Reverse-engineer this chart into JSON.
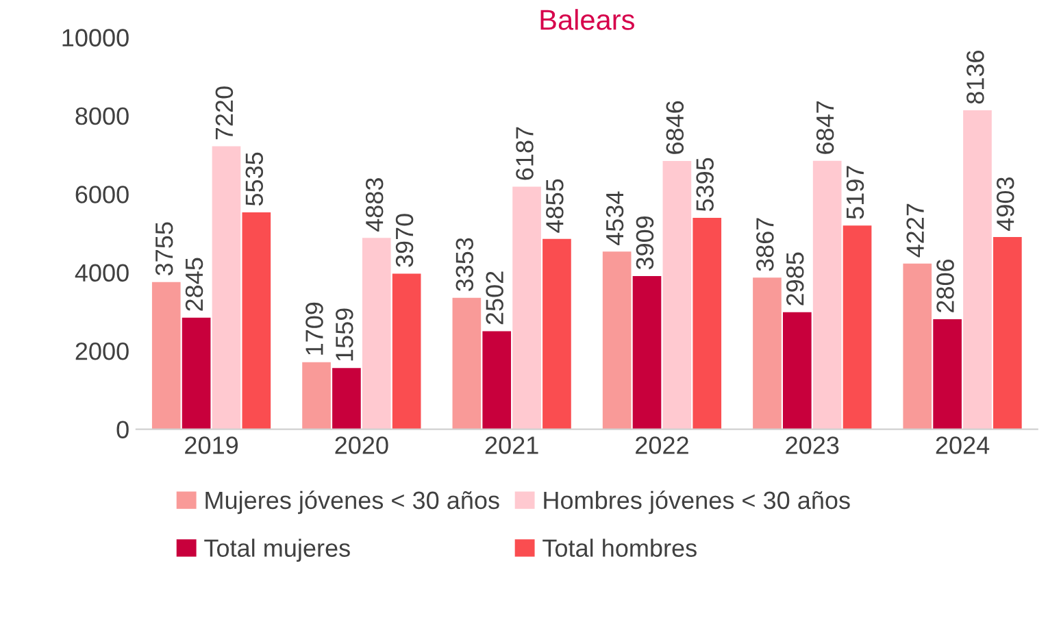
{
  "chart_data": {
    "type": "bar",
    "title": "Balears",
    "categories": [
      "2019",
      "2020",
      "2021",
      "2022",
      "2023",
      "2024"
    ],
    "series": [
      {
        "name": "Mujeres jóvenes < 30 años",
        "color": "#f99a98",
        "values": [
          3755,
          1709,
          3353,
          4534,
          3867,
          4227
        ]
      },
      {
        "name": "Total mujeres",
        "color": "#c8003c",
        "values": [
          2845,
          1559,
          2502,
          3909,
          2985,
          2806
        ]
      },
      {
        "name": "Hombres jóvenes < 30 años",
        "color": "#ffc9d0",
        "values": [
          7220,
          4883,
          6187,
          6846,
          6847,
          8136
        ]
      },
      {
        "name": "Total hombres",
        "color": "#fa4d50",
        "values": [
          5535,
          3970,
          4855,
          5395,
          5197,
          4903
        ]
      }
    ],
    "ylim": [
      0,
      10000
    ],
    "yticks": [
      0,
      2000,
      4000,
      6000,
      8000,
      10000
    ],
    "data_labels": true,
    "grid": false,
    "legend": "bottom"
  }
}
